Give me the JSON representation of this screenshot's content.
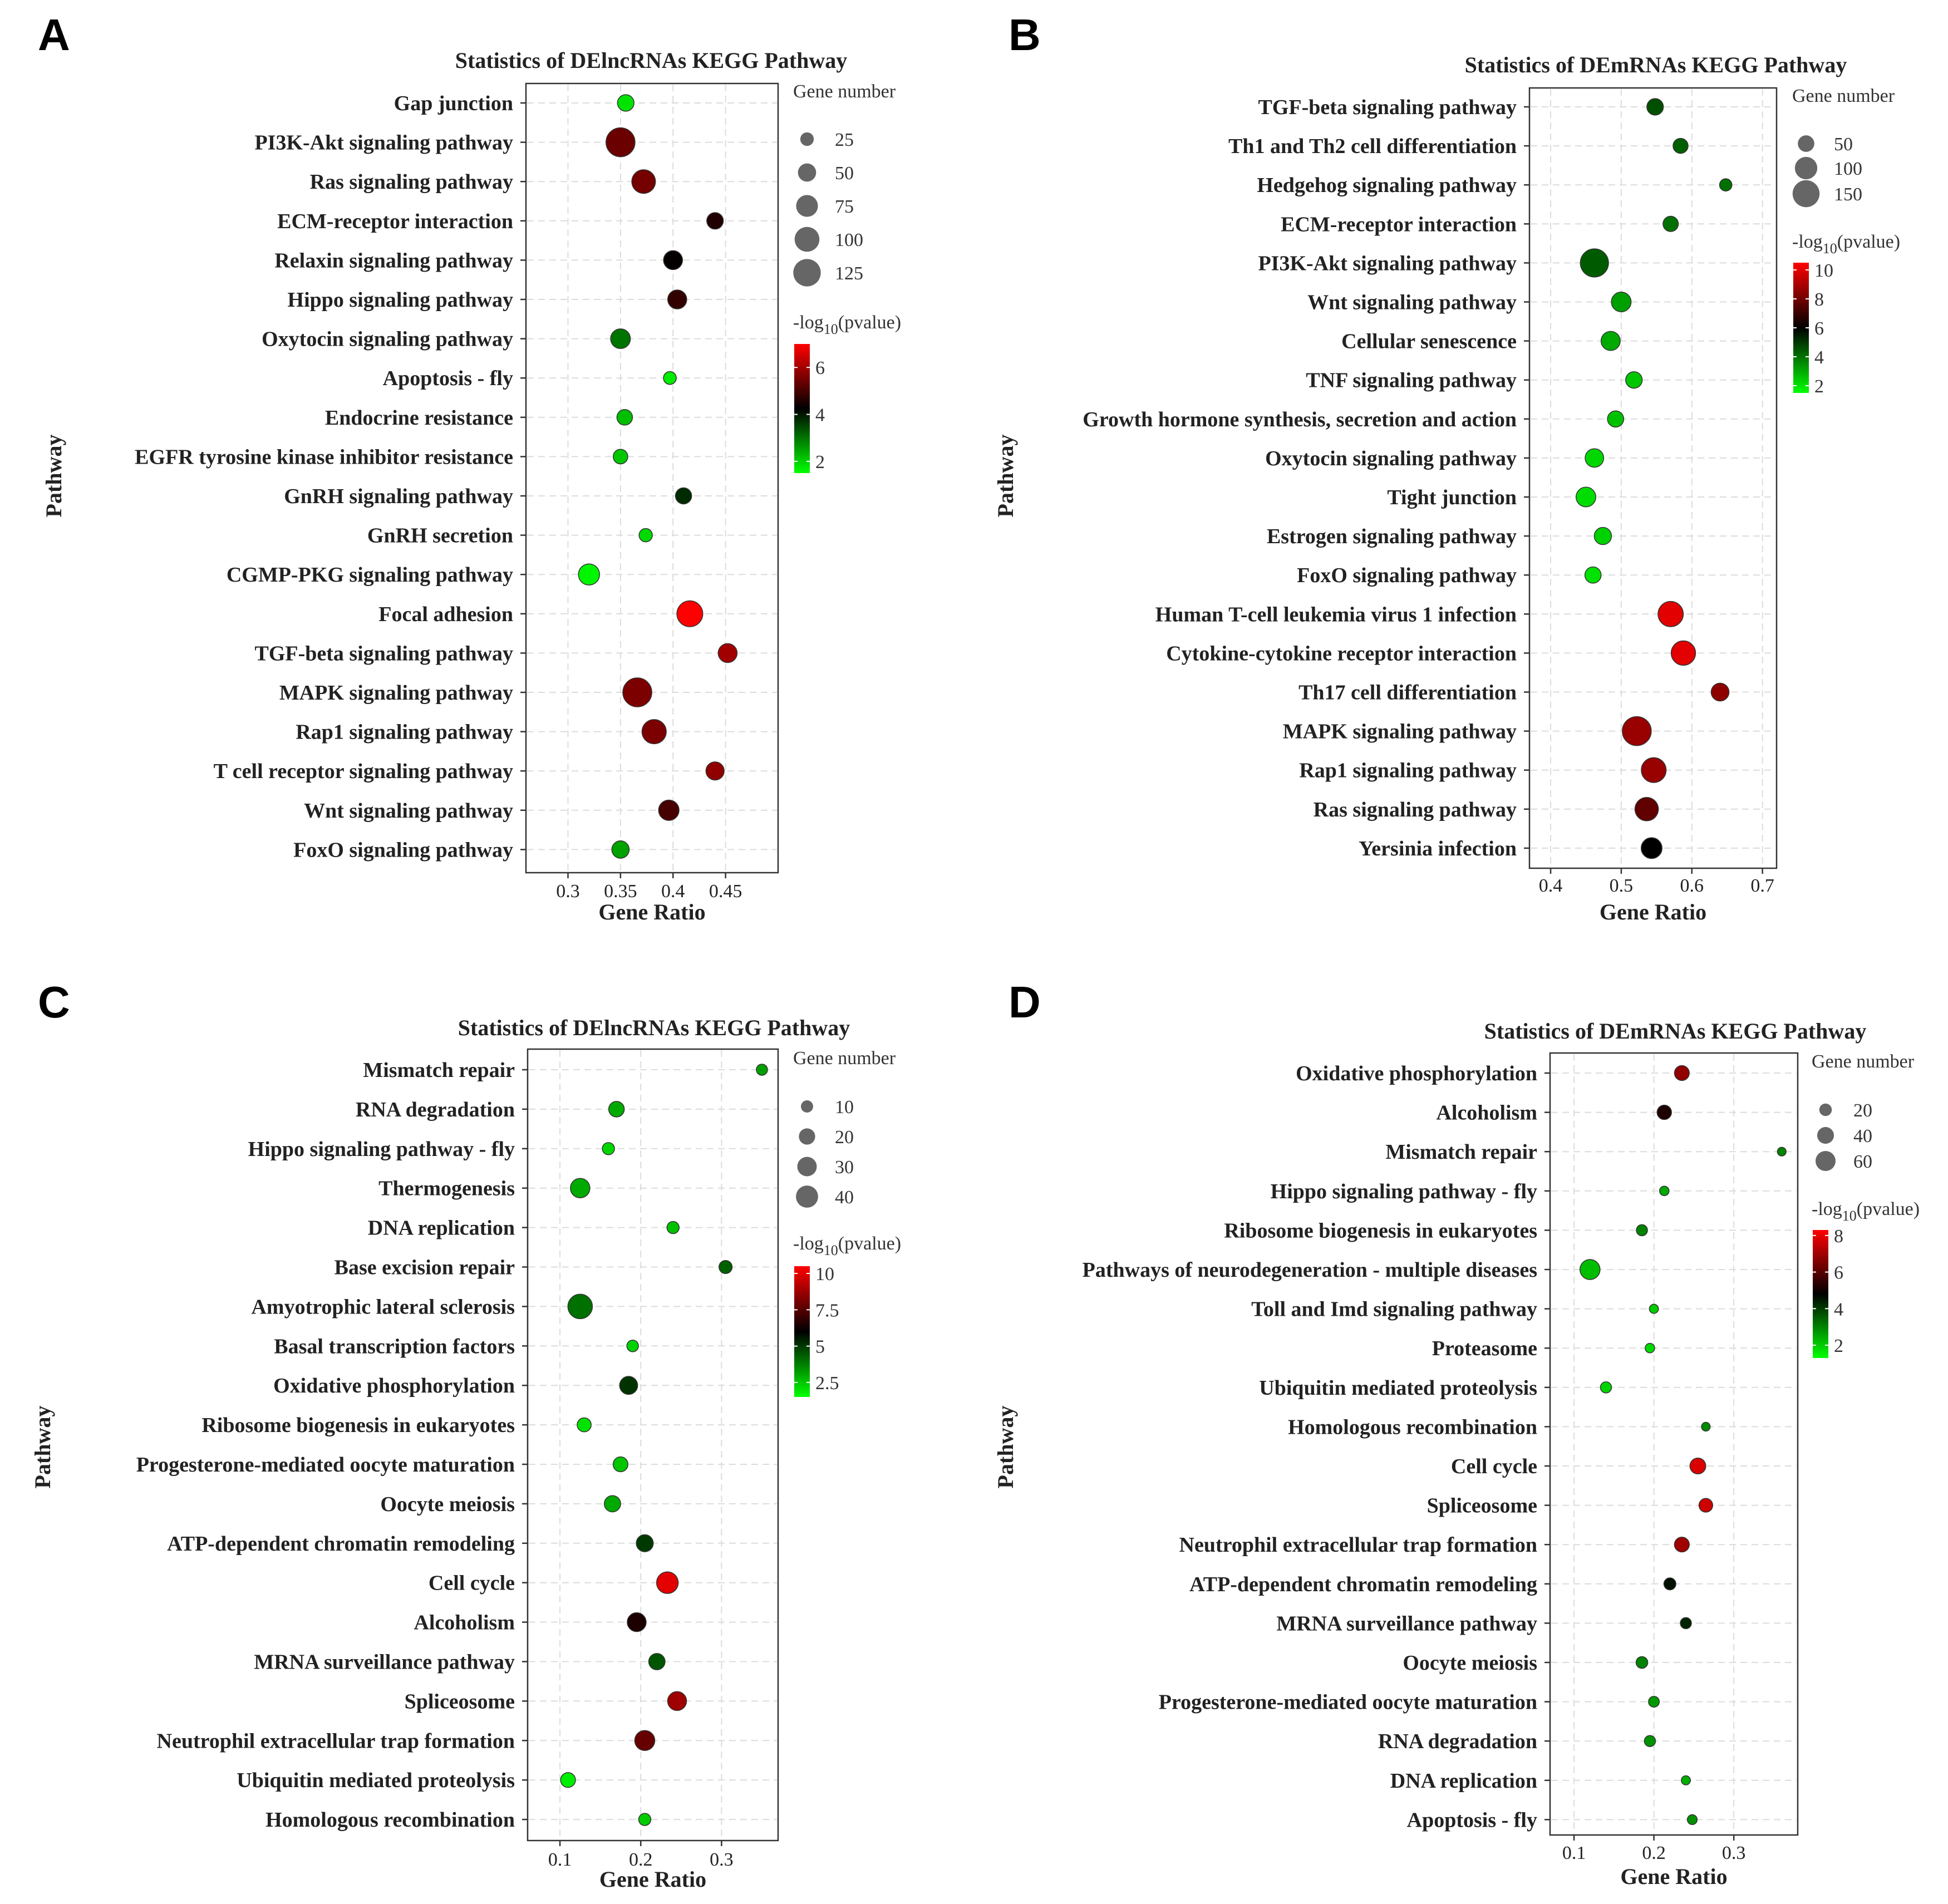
{
  "figure_label": "KEGG pathway enrichment bubble plots",
  "chart_data": [
    {
      "panel": "A",
      "type": "scatter",
      "title": "Statistics of DElncRNAs KEGG Pathway",
      "xlabel": "Gene Ratio",
      "ylabel": "Pathway",
      "xlim": [
        0.26,
        0.5
      ],
      "xticks": [
        0.3,
        0.35,
        0.4,
        0.45
      ],
      "xtick_labels": [
        "0.3",
        "0.35",
        "0.4",
        "0.45"
      ],
      "size_legend": {
        "title": "Gene number",
        "values": [
          25,
          50,
          75,
          100,
          125
        ],
        "labels": [
          "25",
          "50",
          "75",
          "100",
          "125"
        ]
      },
      "color_legend": {
        "title_prefix": "-log",
        "title_sub": "10",
        "title_suffix": "(pvalue)",
        "min": 1.5,
        "max": 7,
        "ticks": [
          2,
          4,
          6
        ],
        "tick_labels": [
          "2",
          "4",
          "6"
        ]
      },
      "points": [
        {
          "pathway": "Gap junction",
          "x": 0.355,
          "count": 40,
          "neglog10p": 1.8
        },
        {
          "pathway": "PI3K-Akt signaling pathway",
          "x": 0.35,
          "count": 140,
          "neglog10p": 5.4
        },
        {
          "pathway": "Ras signaling pathway",
          "x": 0.372,
          "count": 90,
          "neglog10p": 5.5
        },
        {
          "pathway": "ECM-receptor interaction",
          "x": 0.44,
          "count": 40,
          "neglog10p": 4.6
        },
        {
          "pathway": "Relaxin signaling pathway",
          "x": 0.4,
          "count": 55,
          "neglog10p": 4.3
        },
        {
          "pathway": "Hippo signaling pathway",
          "x": 0.404,
          "count": 55,
          "neglog10p": 4.8
        },
        {
          "pathway": "Oxytocin signaling pathway",
          "x": 0.35,
          "count": 60,
          "neglog10p": 3.0
        },
        {
          "pathway": "Apoptosis - fly",
          "x": 0.397,
          "count": 22,
          "neglog10p": 1.7
        },
        {
          "pathway": "Endocrine resistance",
          "x": 0.354,
          "count": 35,
          "neglog10p": 2.2
        },
        {
          "pathway": "EGFR tyrosine kinase inhibitor resistance",
          "x": 0.35,
          "count": 30,
          "neglog10p": 2.1
        },
        {
          "pathway": "GnRH signaling pathway",
          "x": 0.41,
          "count": 38,
          "neglog10p": 3.8
        },
        {
          "pathway": "GnRH secretion",
          "x": 0.374,
          "count": 24,
          "neglog10p": 1.9
        },
        {
          "pathway": "CGMP-PKG signaling pathway",
          "x": 0.32,
          "count": 70,
          "neglog10p": 1.6
        },
        {
          "pathway": "Focal adhesion",
          "x": 0.416,
          "count": 110,
          "neglog10p": 7.0
        },
        {
          "pathway": "TGF-beta signaling pathway",
          "x": 0.452,
          "count": 55,
          "neglog10p": 6.0
        },
        {
          "pathway": "MAPK signaling pathway",
          "x": 0.366,
          "count": 140,
          "neglog10p": 5.6
        },
        {
          "pathway": "Rap1 signaling pathway",
          "x": 0.382,
          "count": 95,
          "neglog10p": 5.6
        },
        {
          "pathway": "T cell receptor signaling pathway",
          "x": 0.44,
          "count": 50,
          "neglog10p": 5.8
        },
        {
          "pathway": "Wnt signaling pathway",
          "x": 0.396,
          "count": 65,
          "neglog10p": 5.0
        },
        {
          "pathway": "FoxO signaling pathway",
          "x": 0.35,
          "count": 45,
          "neglog10p": 2.5
        }
      ]
    },
    {
      "panel": "B",
      "type": "scatter",
      "title": "Statistics of DEmRNAs KEGG Pathway",
      "xlabel": "Gene Ratio",
      "ylabel": "Pathway",
      "xlim": [
        0.37,
        0.72
      ],
      "xticks": [
        0.4,
        0.5,
        0.6,
        0.7
      ],
      "xtick_labels": [
        "0.4",
        "0.5",
        "0.6",
        "0.7"
      ],
      "size_legend": {
        "title": "Gene number",
        "values": [
          50,
          100,
          150
        ],
        "labels": [
          "50",
          "100",
          "150"
        ]
      },
      "color_legend": {
        "title_prefix": "-log",
        "title_sub": "10",
        "title_suffix": "(pvalue)",
        "min": 1.5,
        "max": 10.5,
        "ticks": [
          2,
          4,
          6,
          8,
          10
        ],
        "tick_labels": [
          "2",
          "4",
          "6",
          "8",
          "10"
        ]
      },
      "points": [
        {
          "pathway": "TGF-beta signaling pathway",
          "x": 0.548,
          "count": 50,
          "neglog10p": 4.6
        },
        {
          "pathway": "Th1 and Th2 cell differentiation",
          "x": 0.584,
          "count": 40,
          "neglog10p": 4.3
        },
        {
          "pathway": "Hedgehog signaling pathway",
          "x": 0.648,
          "count": 25,
          "neglog10p": 4.0
        },
        {
          "pathway": "ECM-receptor interaction",
          "x": 0.57,
          "count": 42,
          "neglog10p": 4.0
        },
        {
          "pathway": "PI3K-Akt signaling pathway",
          "x": 0.462,
          "count": 165,
          "neglog10p": 4.4
        },
        {
          "pathway": "Wnt signaling pathway",
          "x": 0.5,
          "count": 75,
          "neglog10p": 3.2
        },
        {
          "pathway": "Cellular senescence",
          "x": 0.485,
          "count": 70,
          "neglog10p": 3.0
        },
        {
          "pathway": "TNF signaling pathway",
          "x": 0.518,
          "count": 50,
          "neglog10p": 2.5
        },
        {
          "pathway": "Growth hormone synthesis, secretion and action",
          "x": 0.492,
          "count": 48,
          "neglog10p": 2.6
        },
        {
          "pathway": "Oxytocin signaling pathway",
          "x": 0.462,
          "count": 65,
          "neglog10p": 2.2
        },
        {
          "pathway": "Tight junction",
          "x": 0.45,
          "count": 75,
          "neglog10p": 2.1
        },
        {
          "pathway": "Estrogen signaling pathway",
          "x": 0.474,
          "count": 55,
          "neglog10p": 2.3
        },
        {
          "pathway": "FoxO signaling pathway",
          "x": 0.46,
          "count": 48,
          "neglog10p": 2.0
        },
        {
          "pathway": "Human T-cell leukemia virus 1 infection",
          "x": 0.57,
          "count": 130,
          "neglog10p": 10.0
        },
        {
          "pathway": "Cytokine-cytokine receptor interaction",
          "x": 0.588,
          "count": 120,
          "neglog10p": 10.0
        },
        {
          "pathway": "Th17 cell differentiation",
          "x": 0.64,
          "count": 60,
          "neglog10p": 8.5
        },
        {
          "pathway": "MAPK signaling pathway",
          "x": 0.522,
          "count": 175,
          "neglog10p": 8.7
        },
        {
          "pathway": "Rap1 signaling pathway",
          "x": 0.546,
          "count": 125,
          "neglog10p": 8.7
        },
        {
          "pathway": "Ras signaling pathway",
          "x": 0.536,
          "count": 110,
          "neglog10p": 7.7
        },
        {
          "pathway": "Yersinia infection",
          "x": 0.543,
          "count": 85,
          "neglog10p": 6.0
        }
      ]
    },
    {
      "panel": "C",
      "type": "scatter",
      "title": "Statistics of DElncRNAs KEGG Pathway",
      "xlabel": "Gene Ratio",
      "ylabel": "Pathway",
      "xlim": [
        0.06,
        0.37
      ],
      "xticks": [
        0.1,
        0.2,
        0.3
      ],
      "xtick_labels": [
        "0.1",
        "0.2",
        "0.3"
      ],
      "size_legend": {
        "title": "Gene number",
        "values": [
          10,
          20,
          30,
          40
        ],
        "labels": [
          "10",
          "20",
          "30",
          "40"
        ]
      },
      "color_legend": {
        "title_prefix": "-log",
        "title_sub": "10",
        "title_suffix": "(pvalue)",
        "min": 1.5,
        "max": 10.5,
        "ticks": [
          2.5,
          5,
          7.5,
          10
        ],
        "tick_labels": [
          "2.5",
          "5",
          "7.5",
          "10"
        ]
      },
      "points": [
        {
          "pathway": "Mismatch repair",
          "x": 0.35,
          "count": 8,
          "neglog10p": 3.2
        },
        {
          "pathway": "RNA degradation",
          "x": 0.17,
          "count": 18,
          "neglog10p": 3.0
        },
        {
          "pathway": "Hippo signaling pathway - fly",
          "x": 0.16,
          "count": 10,
          "neglog10p": 2.2
        },
        {
          "pathway": "Thermogenesis",
          "x": 0.125,
          "count": 30,
          "neglog10p": 3.0
        },
        {
          "pathway": "DNA replication",
          "x": 0.24,
          "count": 10,
          "neglog10p": 2.6
        },
        {
          "pathway": "Base excision repair",
          "x": 0.305,
          "count": 12,
          "neglog10p": 4.3
        },
        {
          "pathway": "Amyotrophic lateral sclerosis",
          "x": 0.125,
          "count": 50,
          "neglog10p": 4.0
        },
        {
          "pathway": "Basal transcription factors",
          "x": 0.19,
          "count": 9,
          "neglog10p": 2.3
        },
        {
          "pathway": "Oxidative phosphorylation",
          "x": 0.185,
          "count": 25,
          "neglog10p": 5.1
        },
        {
          "pathway": "Ribosome biogenesis in eukaryotes",
          "x": 0.13,
          "count": 14,
          "neglog10p": 2.0
        },
        {
          "pathway": "Progesterone-mediated oocyte maturation",
          "x": 0.175,
          "count": 16,
          "neglog10p": 2.5
        },
        {
          "pathway": "Oocyte meiosis",
          "x": 0.165,
          "count": 20,
          "neglog10p": 3.0
        },
        {
          "pathway": "ATP-dependent chromatin remodeling",
          "x": 0.205,
          "count": 22,
          "neglog10p": 5.0
        },
        {
          "pathway": "Cell cycle",
          "x": 0.233,
          "count": 38,
          "neglog10p": 10.0
        },
        {
          "pathway": "Alcoholism",
          "x": 0.195,
          "count": 28,
          "neglog10p": 6.5
        },
        {
          "pathway": "MRNA surveillance pathway",
          "x": 0.22,
          "count": 20,
          "neglog10p": 4.5
        },
        {
          "pathway": "Spliceosome",
          "x": 0.245,
          "count": 28,
          "neglog10p": 8.8
        },
        {
          "pathway": "Neutrophil extracellular trap formation",
          "x": 0.205,
          "count": 32,
          "neglog10p": 7.8
        },
        {
          "pathway": "Ubiquitin mediated proteolysis",
          "x": 0.11,
          "count": 16,
          "neglog10p": 1.8
        },
        {
          "pathway": "Homologous recombination",
          "x": 0.205,
          "count": 10,
          "neglog10p": 2.4
        }
      ]
    },
    {
      "panel": "D",
      "type": "scatter",
      "title": "Statistics of DEmRNAs KEGG Pathway",
      "xlabel": "Gene Ratio",
      "ylabel": "Pathway",
      "xlim": [
        0.07,
        0.38
      ],
      "xticks": [
        0.1,
        0.2,
        0.3
      ],
      "xtick_labels": [
        "0.1",
        "0.2",
        "0.3"
      ],
      "size_legend": {
        "title": "Gene number",
        "values": [
          20,
          40,
          60
        ],
        "labels": [
          "20",
          "40",
          "60"
        ]
      },
      "color_legend": {
        "title_prefix": "-log",
        "title_sub": "10",
        "title_suffix": "(pvalue)",
        "min": 1.3,
        "max": 8.3,
        "ticks": [
          2,
          4,
          6,
          8
        ],
        "tick_labels": [
          "2",
          "4",
          "6",
          "8"
        ]
      },
      "points": [
        {
          "pathway": "Oxidative phosphorylation",
          "x": 0.235,
          "count": 30,
          "neglog10p": 6.8
        },
        {
          "pathway": "Alcoholism",
          "x": 0.213,
          "count": 28,
          "neglog10p": 5.2
        },
        {
          "pathway": "Mismatch repair",
          "x": 0.36,
          "count": 8,
          "neglog10p": 3.0
        },
        {
          "pathway": "Hippo signaling pathway - fly",
          "x": 0.213,
          "count": 10,
          "neglog10p": 2.5
        },
        {
          "pathway": "Ribosome biogenesis in eukaryotes",
          "x": 0.185,
          "count": 15,
          "neglog10p": 3.0
        },
        {
          "pathway": "Pathways of neurodegeneration - multiple diseases",
          "x": 0.12,
          "count": 60,
          "neglog10p": 2.2
        },
        {
          "pathway": "Toll and Imd signaling pathway",
          "x": 0.2,
          "count": 9,
          "neglog10p": 2.0
        },
        {
          "pathway": "Proteasome",
          "x": 0.195,
          "count": 10,
          "neglog10p": 1.8
        },
        {
          "pathway": "Ubiquitin mediated proteolysis",
          "x": 0.14,
          "count": 15,
          "neglog10p": 1.9
        },
        {
          "pathway": "Homologous recombination",
          "x": 0.265,
          "count": 8,
          "neglog10p": 2.9
        },
        {
          "pathway": "Cell cycle",
          "x": 0.255,
          "count": 35,
          "neglog10p": 7.8
        },
        {
          "pathway": "Spliceosome",
          "x": 0.265,
          "count": 25,
          "neglog10p": 7.6
        },
        {
          "pathway": "Neutrophil extracellular trap formation",
          "x": 0.235,
          "count": 30,
          "neglog10p": 7.0
        },
        {
          "pathway": "ATP-dependent chromatin remodeling",
          "x": 0.22,
          "count": 18,
          "neglog10p": 4.6
        },
        {
          "pathway": "MRNA surveillance pathway",
          "x": 0.24,
          "count": 15,
          "neglog10p": 4.3
        },
        {
          "pathway": "Oocyte meiosis",
          "x": 0.185,
          "count": 17,
          "neglog10p": 3.0
        },
        {
          "pathway": "Progesterone-mediated oocyte maturation",
          "x": 0.2,
          "count": 14,
          "neglog10p": 2.7
        },
        {
          "pathway": "RNA degradation",
          "x": 0.195,
          "count": 15,
          "neglog10p": 2.8
        },
        {
          "pathway": "DNA replication",
          "x": 0.24,
          "count": 9,
          "neglog10p": 2.4
        },
        {
          "pathway": "Apoptosis - fly",
          "x": 0.248,
          "count": 11,
          "neglog10p": 2.8
        }
      ]
    }
  ]
}
